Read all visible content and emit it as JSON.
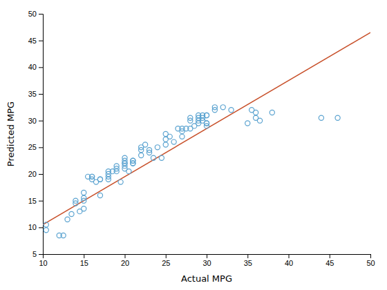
{
  "chart_data": {
    "type": "scatter",
    "xlabel": "Actual MPG",
    "ylabel": "Predicted MPG",
    "xlim": [
      10,
      50
    ],
    "ylim": [
      5,
      50
    ],
    "xticks": [
      10,
      15,
      20,
      25,
      30,
      35,
      40,
      45,
      50
    ],
    "yticks": [
      5,
      10,
      15,
      20,
      25,
      30,
      35,
      40,
      45,
      50
    ],
    "grid": false,
    "series": [
      {
        "type": "scatter",
        "color": "#5ba3d0",
        "x": [
          10.4,
          10.4,
          12.0,
          12.5,
          13.0,
          13.5,
          14.0,
          14.0,
          14.5,
          15.0,
          15.0,
          15.0,
          15.0,
          15.5,
          16.0,
          16.0,
          16.0,
          16.5,
          17.0,
          17.0,
          17.0,
          18.0,
          18.0,
          18.0,
          18.0,
          18.5,
          19.0,
          19.0,
          19.0,
          19.5,
          20.0,
          20.0,
          20.0,
          20.0,
          20.0,
          20.0,
          20.5,
          21.0,
          21.0,
          21.0,
          21.0,
          22.0,
          22.0,
          22.0,
          22.5,
          23.0,
          23.0,
          23.5,
          24.0,
          24.5,
          25.0,
          25.0,
          25.0,
          25.5,
          26.0,
          26.5,
          27.0,
          27.0,
          27.0,
          27.5,
          28.0,
          28.0,
          28.0,
          28.5,
          29.0,
          29.0,
          29.0,
          29.0,
          29.5,
          29.5,
          29.5,
          30.0,
          30.0,
          30.0,
          30.0,
          30.0,
          31.0,
          31.0,
          32.0,
          33.0,
          35.0,
          35.5,
          36.0,
          36.0,
          36.5,
          38.0,
          44.0,
          46.0
        ],
        "values": [
          10.5,
          9.5,
          8.5,
          8.5,
          11.5,
          12.5,
          14.5,
          15.0,
          13.0,
          13.5,
          15.5,
          15.0,
          16.5,
          19.5,
          19.0,
          19.5,
          19.5,
          18.5,
          19.0,
          19.0,
          16.0,
          20.5,
          20.0,
          19.0,
          19.5,
          20.5,
          20.5,
          21.5,
          21.0,
          18.5,
          21.0,
          22.0,
          22.5,
          21.5,
          22.0,
          23.0,
          20.5,
          22.0,
          22.5,
          22.0,
          22.5,
          23.5,
          25.0,
          24.5,
          25.5,
          24.5,
          24.0,
          23.0,
          25.0,
          23.0,
          25.5,
          26.5,
          27.5,
          27.0,
          26.0,
          28.5,
          28.0,
          28.5,
          27.0,
          28.5,
          28.5,
          30.5,
          30.0,
          29.0,
          31.0,
          29.5,
          30.5,
          30.0,
          31.0,
          30.0,
          30.5,
          31.0,
          29.5,
          29.0,
          31.0,
          29.5,
          32.0,
          32.5,
          32.5,
          32.0,
          29.5,
          32.0,
          31.5,
          30.5,
          30.0,
          31.5,
          30.5,
          30.5
        ]
      },
      {
        "type": "line",
        "color": "#c8502a",
        "x": [
          10,
          50
        ],
        "values": [
          10.5,
          46.5
        ]
      }
    ]
  }
}
